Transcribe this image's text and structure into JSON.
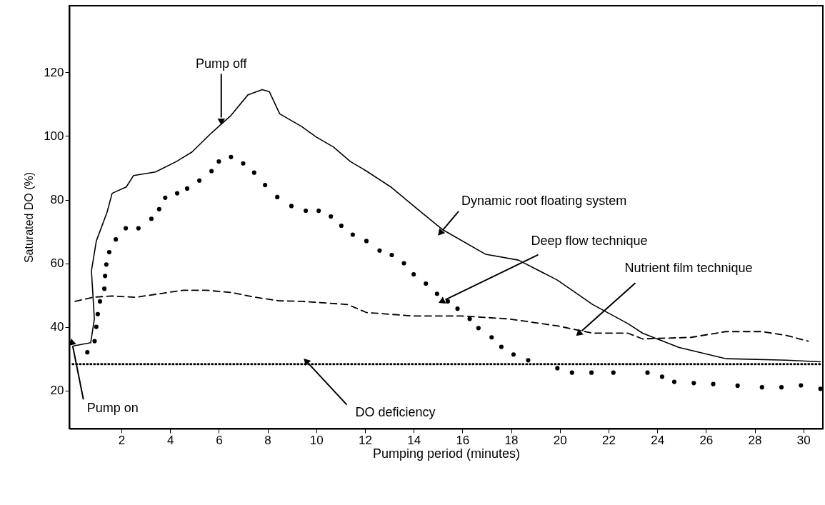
{
  "chart_data": {
    "type": "line",
    "xlabel": "Pumping period (minutes)",
    "ylabel": "Saturated DO (%)",
    "xlim": [
      -0.14,
      30.8
    ],
    "ylim": [
      8,
      141
    ],
    "xticks": [
      2,
      4,
      6,
      8,
      10,
      12,
      14,
      16,
      18,
      20,
      22,
      24,
      26,
      28,
      30
    ],
    "yticks": [
      20,
      40,
      60,
      80,
      100,
      120
    ],
    "grid": false,
    "series": [
      {
        "name": "Dynamic root floating system",
        "color": "#000000",
        "line_style": "solid",
        "x": [
          0.04,
          0.74,
          0.89,
          0.77,
          0.97,
          1.41,
          1.62,
          2.2,
          2.5,
          3.4,
          4.26,
          4.9,
          5.7,
          6.5,
          7.2,
          7.78,
          8.07,
          8.5,
          9.4,
          10.0,
          10.7,
          11.4,
          12.06,
          13.06,
          14.0,
          15.2,
          16.96,
          18.3,
          19.9,
          21.35,
          22.8,
          23.4,
          24.9,
          26.8,
          29.3,
          30.7
        ],
        "values": [
          34,
          35,
          42.5,
          57.6,
          67,
          76,
          82,
          84,
          87.6,
          88.7,
          92,
          95,
          101,
          106.5,
          113,
          114.6,
          114,
          107,
          103,
          99.7,
          96.6,
          92,
          89,
          84,
          78,
          70.5,
          62.8,
          61,
          54.7,
          47,
          41,
          38,
          33.5,
          30,
          29.5,
          29
        ]
      },
      {
        "name": "Deep flow technique",
        "color": "#000000",
        "type": "scatter",
        "marker": "circle",
        "x": [
          0.6,
          0.9,
          0.97,
          1.03,
          1.12,
          1.3,
          1.33,
          1.38,
          1.5,
          1.77,
          2.18,
          2.7,
          3.23,
          3.55,
          3.8,
          4.29,
          4.7,
          5.2,
          5.7,
          6.0,
          6.5,
          7.0,
          7.45,
          7.9,
          8.4,
          8.98,
          9.57,
          10.1,
          10.6,
          11.03,
          11.5,
          12.06,
          12.6,
          13.1,
          13.6,
          14.0,
          14.5,
          14.96,
          15.4,
          15.8,
          16.3,
          16.66,
          17.2,
          17.6,
          18.1,
          18.7,
          19.9,
          20.5,
          21.3,
          22.2,
          23.6,
          24.2,
          24.7,
          25.5,
          26.3,
          27.3,
          28.3,
          29.1,
          29.9,
          30.7
        ],
        "values": [
          32,
          35.5,
          40,
          44,
          48,
          52,
          56,
          59.6,
          63.5,
          67.5,
          71,
          71,
          74,
          77,
          80.6,
          82,
          83.5,
          86,
          89,
          92,
          93.4,
          91.4,
          88.5,
          84.6,
          80.8,
          78,
          76.5,
          76.5,
          74.7,
          71.8,
          69,
          67,
          64,
          62.6,
          60,
          56.5,
          53.6,
          50.4,
          48,
          45.7,
          42.5,
          39.6,
          36.7,
          33.7,
          31.3,
          29.5,
          27,
          25.6,
          25.6,
          25.6,
          25.6,
          24.3,
          22.7,
          22.3,
          22,
          21.5,
          21,
          21,
          21.6,
          20.5
        ]
      },
      {
        "name": "Nutrient film technique",
        "color": "#000000",
        "line_style": "dashed",
        "x": [
          0.1,
          0.83,
          1.6,
          2.6,
          3.55,
          4.55,
          5.5,
          6.5,
          7.5,
          8.45,
          9.4,
          10.4,
          11.3,
          12.06,
          14.0,
          16.0,
          17.9,
          19.9,
          21.35,
          22.8,
          23.4,
          25.4,
          26.8,
          28.3,
          29.3,
          30.2
        ],
        "values": [
          48,
          49.3,
          49.7,
          49.3,
          50.4,
          51.5,
          51.5,
          50.8,
          49.3,
          48.2,
          48,
          47.5,
          47,
          44.5,
          43.4,
          43.4,
          42.5,
          40.3,
          38,
          38,
          36.2,
          36.7,
          38.5,
          38.5,
          37.3,
          35.5
        ]
      },
      {
        "name": "DO deficiency",
        "color": "#000000",
        "line_style": "dotted",
        "x": [
          0,
          30.7
        ],
        "values": [
          28.3,
          28.3
        ]
      }
    ],
    "annotations": [
      {
        "text": "Pump off",
        "x": 6.1,
        "y": 104.5
      },
      {
        "text": "Pump on",
        "x": 0,
        "y": 34
      }
    ]
  }
}
